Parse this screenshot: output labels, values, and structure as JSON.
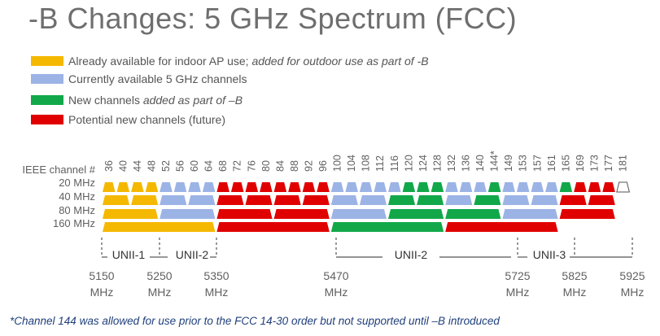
{
  "title": "-B Changes: 5 GHz Spectrum (FCC)",
  "colors": {
    "yellow": "#f5b800",
    "blue": "#9cb3e6",
    "green": "#12a84a",
    "red": "#e00000",
    "white": "#ffffff"
  },
  "legend": [
    {
      "color": "yellow",
      "text": "Already available  for indoor AP use; ",
      "italic": "added for outdoor use as part of -B"
    },
    {
      "color": "blue",
      "text": "Currently available  5 GHz channels",
      "italic": ""
    },
    {
      "color": "green",
      "text": "New channels ",
      "italic": "added as part of –B"
    },
    {
      "color": "red",
      "text": "Potential new channels (future)",
      "italic": ""
    }
  ],
  "row_labels": [
    "IEEE channel #",
    "20 MHz",
    "40 MHz",
    "80 MHz",
    "160 MHz"
  ],
  "channels": [
    "36",
    "40",
    "44",
    "48",
    "52",
    "56",
    "60",
    "64",
    "68",
    "72",
    "76",
    "80",
    "84",
    "88",
    "92",
    "96",
    "100",
    "104",
    "108",
    "112",
    "116",
    "120",
    "124",
    "128",
    "132",
    "136",
    "140",
    "144*",
    "149",
    "153",
    "157",
    "161",
    "165",
    "169",
    "173",
    "177",
    "181"
  ],
  "bands": {
    "w20": [
      "yellow",
      "yellow",
      "yellow",
      "yellow",
      "blue",
      "blue",
      "blue",
      "blue",
      "red",
      "red",
      "red",
      "red",
      "red",
      "red",
      "red",
      "red",
      "blue",
      "blue",
      "blue",
      "blue",
      "blue",
      "green",
      "green",
      "green",
      "blue",
      "blue",
      "blue",
      "green",
      "blue",
      "blue",
      "blue",
      "blue",
      "green",
      "red",
      "red",
      "red",
      "white"
    ],
    "w40": [
      {
        "color": "yellow",
        "span": 2
      },
      {
        "color": "yellow",
        "span": 2
      },
      {
        "color": "blue",
        "span": 2
      },
      {
        "color": "blue",
        "span": 2
      },
      {
        "color": "red",
        "span": 2
      },
      {
        "color": "red",
        "span": 2
      },
      {
        "color": "red",
        "span": 2
      },
      {
        "color": "red",
        "span": 2
      },
      {
        "color": "blue",
        "span": 2
      },
      {
        "color": "blue",
        "span": 2
      },
      {
        "color": "green",
        "span": 2
      },
      {
        "color": "green",
        "span": 2
      },
      {
        "color": "blue",
        "span": 2
      },
      {
        "color": "green",
        "span": 2
      },
      {
        "color": "blue",
        "span": 2
      },
      {
        "color": "blue",
        "span": 2
      },
      {
        "color": "red",
        "span": 2
      },
      {
        "color": "red",
        "span": 2
      }
    ],
    "w80": [
      {
        "color": "yellow",
        "span": 4
      },
      {
        "color": "blue",
        "span": 4
      },
      {
        "color": "red",
        "span": 4
      },
      {
        "color": "red",
        "span": 4
      },
      {
        "color": "blue",
        "span": 4
      },
      {
        "color": "green",
        "span": 4
      },
      {
        "color": "green",
        "span": 4
      },
      {
        "color": "blue",
        "span": 4
      },
      {
        "color": "red",
        "span": 4
      }
    ],
    "w160": [
      {
        "color": "yellow",
        "span": 8
      },
      {
        "color": "red",
        "span": 8
      },
      {
        "color": "green",
        "span": 8
      },
      {
        "color": "red",
        "span": 8
      }
    ]
  },
  "unii": [
    "UNII-1",
    "UNII-2",
    "UNII-2",
    "UNII-3"
  ],
  "freqs": [
    {
      "value": "5150",
      "unit": "MHz"
    },
    {
      "value": "5250",
      "unit": "MHz"
    },
    {
      "value": "5350",
      "unit": "MHz"
    },
    {
      "value": "5470",
      "unit": "MHz"
    },
    {
      "value": "5725",
      "unit": "MHz"
    },
    {
      "value": "5825",
      "unit": "MHz"
    },
    {
      "value": "5925",
      "unit": "MHz"
    }
  ],
  "footnote": "*Channel 144 was allowed for use prior to the FCC 14-30 order but not supported  until –B introduced"
}
